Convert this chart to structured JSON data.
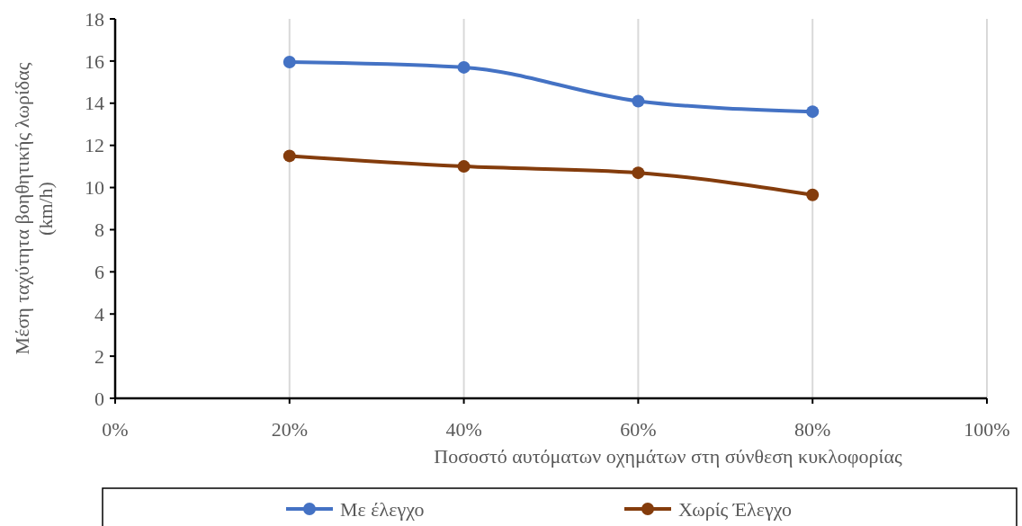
{
  "chart_data": {
    "type": "line",
    "xlabel": "Ποσοστό αυτόματων οχημάτων στη σύνθεση κυκλοφορίας",
    "ylabel": "Μέση ταχύτητα βοηθητικής λωρίδας (km/h)",
    "x": [
      0.2,
      0.4,
      0.6,
      0.8
    ],
    "series": [
      {
        "name": "Με έλεγχο",
        "color": "#4472c4",
        "values": [
          15.95,
          15.7,
          14.1,
          13.6
        ]
      },
      {
        "name": "Χωρίς Έλεγχο",
        "color": "#843c0c",
        "values": [
          11.5,
          11.0,
          10.7,
          9.65
        ]
      }
    ],
    "xlim": [
      0,
      1
    ],
    "xticks": [
      {
        "value": 0,
        "label": "0%"
      },
      {
        "value": 0.2,
        "label": "20%"
      },
      {
        "value": 0.4,
        "label": "40%"
      },
      {
        "value": 0.6,
        "label": "60%"
      },
      {
        "value": 0.8,
        "label": "80%"
      },
      {
        "value": 1,
        "label": "100%"
      }
    ],
    "ylim": [
      0,
      18
    ],
    "yticks": [
      0,
      2,
      4,
      6,
      8,
      10,
      12,
      14,
      16,
      18
    ],
    "grid": "x",
    "legend": "bottom",
    "marker": "circle",
    "line_style": "solid"
  }
}
